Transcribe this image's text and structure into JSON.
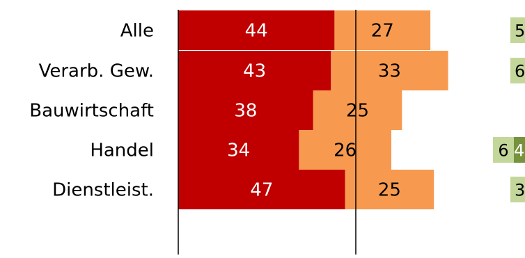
{
  "chart_data": {
    "type": "bar",
    "orientation": "horizontal",
    "stacked": true,
    "categories": [
      "Alle",
      "Verarb. Gew.",
      "Bauwirtschaft",
      "Handel",
      "Dienstleist."
    ],
    "series": [
      {
        "values": [
          44,
          43,
          38,
          34,
          47
        ],
        "color": "#C00000"
      },
      {
        "values": [
          27,
          33,
          25,
          26,
          25
        ],
        "color": "#F79A4F"
      }
    ],
    "right_labels": [
      "5",
      "6",
      "",
      "6",
      "3"
    ],
    "right_dark_labels": [
      "",
      "",
      "",
      "4",
      ""
    ],
    "right_colors": {
      "light": "#C4D79B",
      "dark": "#76923C"
    },
    "xlim": [
      0,
      98
    ],
    "reference_line_value": 50,
    "grid": false,
    "legend": "none"
  }
}
